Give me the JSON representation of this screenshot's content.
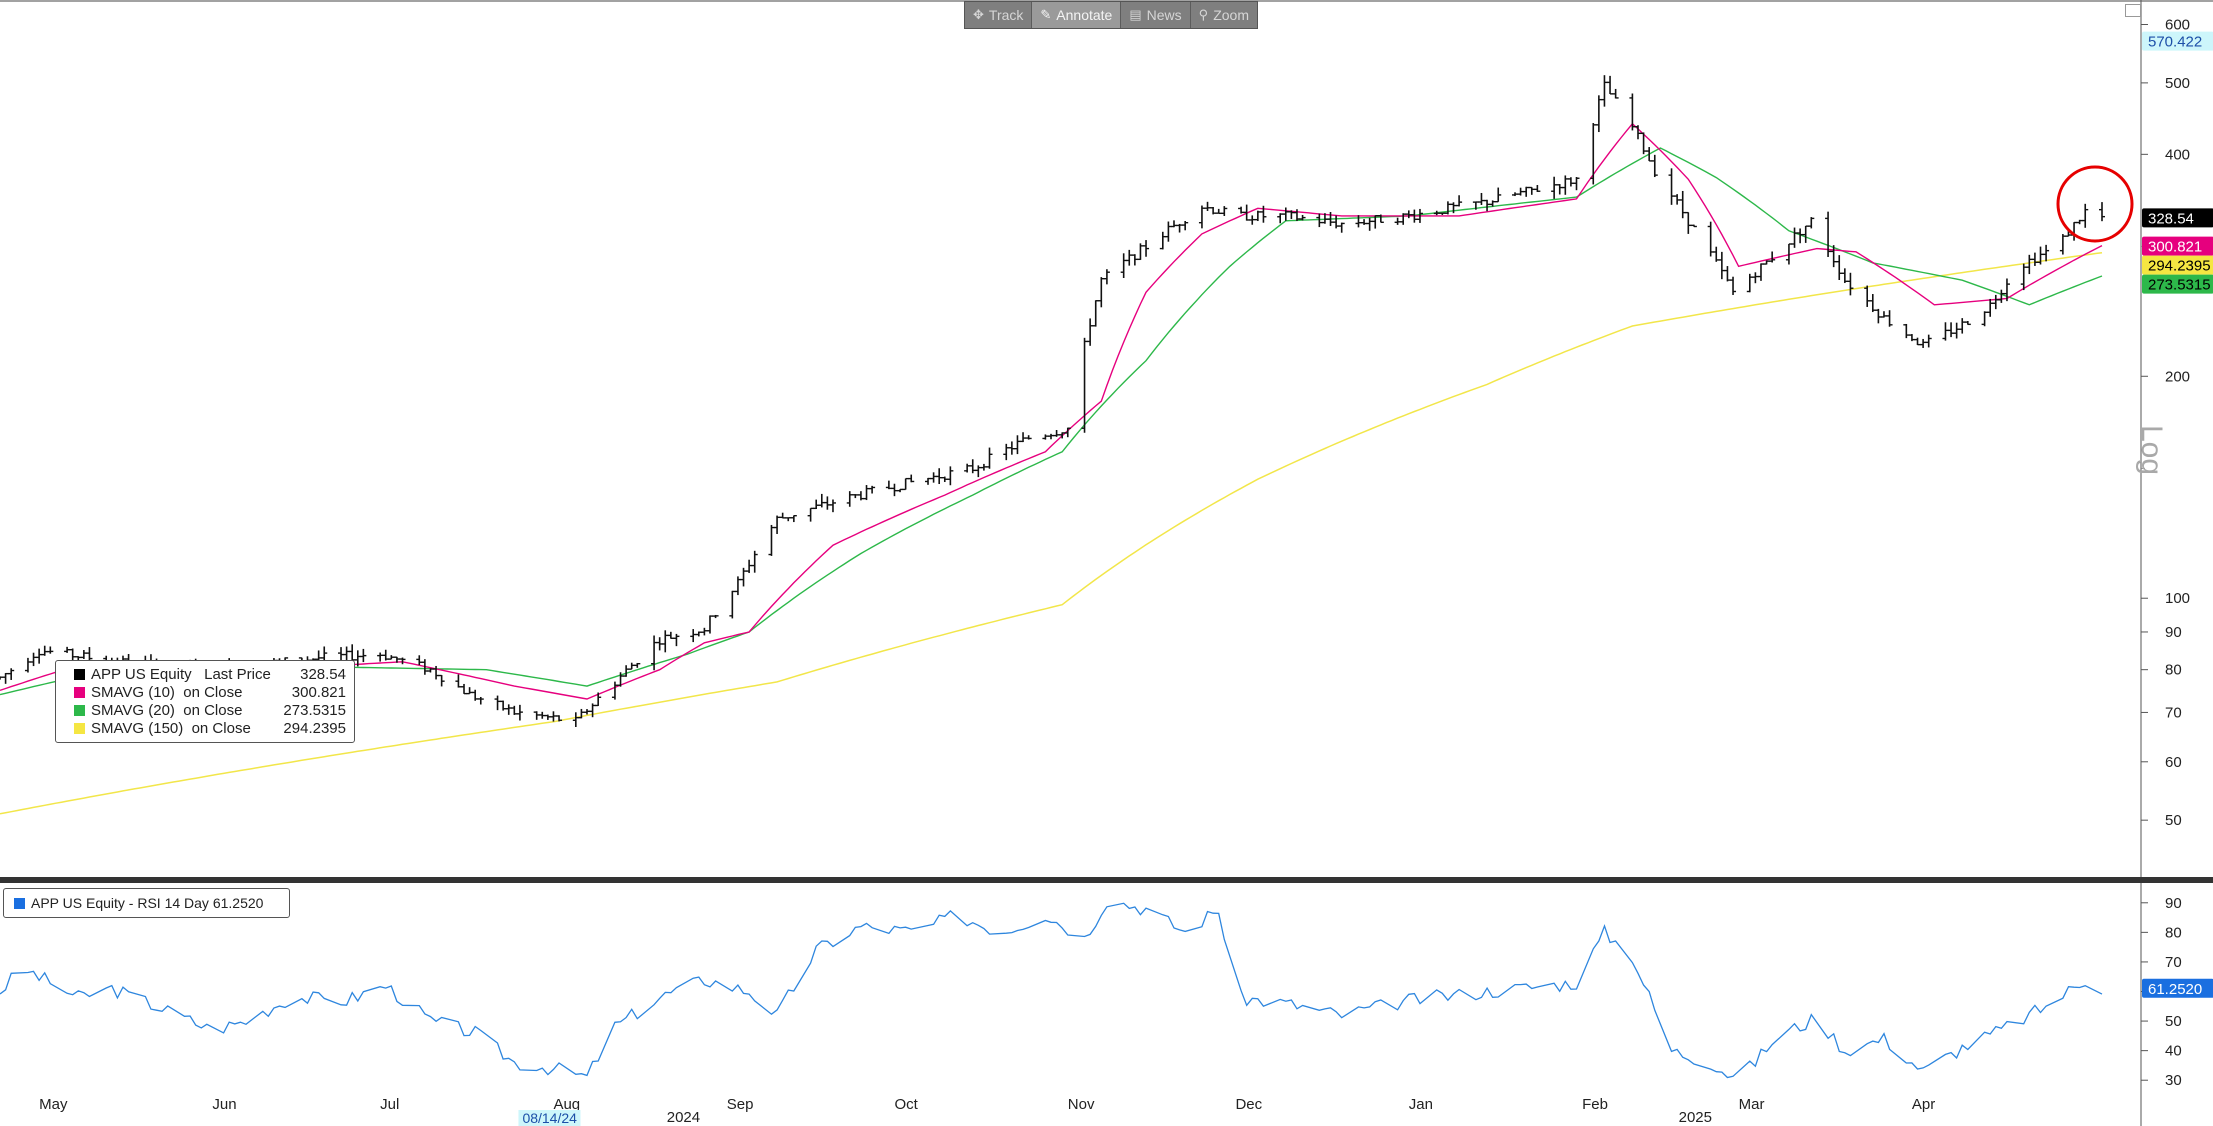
{
  "toolbar": {
    "items": [
      {
        "label": "Track",
        "icon": "crosshair-icon"
      },
      {
        "label": "Annotate",
        "icon": "pencil-icon"
      },
      {
        "label": "News",
        "icon": "news-icon"
      },
      {
        "label": "Zoom",
        "icon": "magnifier-icon"
      }
    ]
  },
  "legend": {
    "rows": [
      {
        "label": "APP US Equity   Last Price",
        "value": "328.54",
        "color": "#000000"
      },
      {
        "label": "SMAVG (10)  on Close",
        "value": "300.821",
        "color": "#e6007e"
      },
      {
        "label": "SMAVG (20)  on Close",
        "value": "273.5315",
        "color": "#2db84a"
      },
      {
        "label": "SMAVG (150)  on Close",
        "value": "294.2395",
        "color": "#f5e642"
      }
    ]
  },
  "rsi_legend": {
    "label": "APP US Equity - RSI 14 Day 61.2520",
    "color": "#1a6fe0"
  },
  "axis_word": "Log",
  "chart_data": [
    {
      "type": "ohlc",
      "series_name": "APP US Equity",
      "y_scale": "log",
      "yticks": [
        50,
        60,
        70,
        80,
        90,
        100,
        200,
        400,
        500,
        600
      ],
      "ylim": [
        42,
        620
      ],
      "x_months": [
        {
          "label": "May",
          "date": "2024-05-01"
        },
        {
          "label": "Jun",
          "date": "2024-06-01"
        },
        {
          "label": "Jul",
          "date": "2024-07-01"
        },
        {
          "label": "Aug",
          "date": "2024-08-01"
        },
        {
          "label": "Sep",
          "date": "2024-09-01"
        },
        {
          "label": "Oct",
          "date": "2024-10-01"
        },
        {
          "label": "Nov",
          "date": "2024-11-01"
        },
        {
          "label": "Dec",
          "date": "2024-12-01"
        },
        {
          "label": "Jan",
          "date": "2025-01-01"
        },
        {
          "label": "Feb",
          "date": "2025-02-01"
        },
        {
          "label": "Mar",
          "date": "2025-03-01"
        },
        {
          "label": "Apr",
          "date": "2025-04-01"
        }
      ],
      "year_labels": [
        {
          "label": "2024",
          "date": "2024-09-01"
        },
        {
          "label": "2025",
          "date": "2025-03-01"
        }
      ],
      "date_marker": {
        "label": "08/14/24",
        "date": "2024-08-01"
      },
      "price_key_points": [
        [
          "2024-04-24",
          78
        ],
        [
          "2024-05-01",
          85
        ],
        [
          "2024-05-15",
          82
        ],
        [
          "2024-06-01",
          80
        ],
        [
          "2024-06-20",
          83
        ],
        [
          "2024-07-01",
          84
        ],
        [
          "2024-07-10",
          80
        ],
        [
          "2024-07-17",
          74
        ],
        [
          "2024-07-25",
          70
        ],
        [
          "2024-08-05",
          68
        ],
        [
          "2024-08-12",
          77
        ],
        [
          "2024-08-20",
          88
        ],
        [
          "2024-08-28",
          91
        ],
        [
          "2024-09-03",
          105
        ],
        [
          "2024-09-10",
          128
        ],
        [
          "2024-09-20",
          135
        ],
        [
          "2024-10-01",
          142
        ],
        [
          "2024-10-15",
          150
        ],
        [
          "2024-10-25",
          165
        ],
        [
          "2024-11-01",
          170
        ],
        [
          "2024-11-07",
          270
        ],
        [
          "2024-11-15",
          300
        ],
        [
          "2024-11-25",
          340
        ],
        [
          "2024-12-01",
          330
        ],
        [
          "2024-12-10",
          330
        ],
        [
          "2024-12-20",
          322
        ],
        [
          "2025-01-01",
          330
        ],
        [
          "2025-01-15",
          345
        ],
        [
          "2025-01-31",
          370
        ],
        [
          "2025-02-05",
          495
        ],
        [
          "2025-02-10",
          435
        ],
        [
          "2025-02-14",
          380
        ],
        [
          "2025-02-20",
          325
        ],
        [
          "2025-02-28",
          260
        ],
        [
          "2025-03-07",
          290
        ],
        [
          "2025-03-14",
          325
        ],
        [
          "2025-03-20",
          270
        ],
        [
          "2025-03-27",
          240
        ],
        [
          "2025-04-03",
          220
        ],
        [
          "2025-04-10",
          235
        ],
        [
          "2025-04-15",
          250
        ],
        [
          "2025-04-20",
          282
        ],
        [
          "2025-04-27",
          300
        ],
        [
          "2025-05-02",
          335
        ],
        [
          "2025-05-05",
          328.54
        ]
      ],
      "price_labels": [
        {
          "value": 570.422,
          "text": "570.422",
          "bg": "#cdf6fb",
          "fg": "#1c4fa8"
        },
        {
          "value": 328.54,
          "text": "328.54",
          "bg": "#000000",
          "fg": "#ffffff"
        },
        {
          "value": 300.821,
          "text": "300.821",
          "bg": "#e6007e",
          "fg": "#ffffff"
        },
        {
          "value": 294.2395,
          "text": "294.2395",
          "bg": "#f5e642",
          "fg": "#000000"
        },
        {
          "value": 273.5315,
          "text": "273.5315",
          "bg": "#2db84a",
          "fg": "#000000"
        }
      ],
      "sma10_key_points": [
        [
          "2024-04-24",
          75
        ],
        [
          "2024-05-10",
          82
        ],
        [
          "2024-06-10",
          80
        ],
        [
          "2024-07-05",
          82
        ],
        [
          "2024-07-25",
          76
        ],
        [
          "2024-08-07",
          73
        ],
        [
          "2024-08-20",
          80
        ],
        [
          "2024-08-28",
          87
        ],
        [
          "2024-09-05",
          90
        ],
        [
          "2024-09-20",
          118
        ],
        [
          "2024-10-10",
          138
        ],
        [
          "2024-10-28",
          158
        ],
        [
          "2024-11-07",
          185
        ],
        [
          "2024-11-15",
          260
        ],
        [
          "2024-11-25",
          312
        ],
        [
          "2024-12-05",
          338
        ],
        [
          "2024-12-20",
          330
        ],
        [
          "2025-01-10",
          330
        ],
        [
          "2025-01-31",
          348
        ],
        [
          "2025-02-10",
          440
        ],
        [
          "2025-02-20",
          370
        ],
        [
          "2025-03-01",
          282
        ],
        [
          "2025-03-15",
          298
        ],
        [
          "2025-03-22",
          295
        ],
        [
          "2025-04-05",
          250
        ],
        [
          "2025-04-18",
          255
        ],
        [
          "2025-05-05",
          300.821
        ]
      ],
      "sma20_key_points": [
        [
          "2024-04-24",
          74
        ],
        [
          "2024-05-10",
          79
        ],
        [
          "2024-06-10",
          81
        ],
        [
          "2024-07-20",
          80
        ],
        [
          "2024-08-07",
          76
        ],
        [
          "2024-08-25",
          84
        ],
        [
          "2024-09-05",
          90
        ],
        [
          "2024-09-25",
          115
        ],
        [
          "2024-10-15",
          138
        ],
        [
          "2024-10-31",
          158
        ],
        [
          "2024-11-15",
          210
        ],
        [
          "2024-11-30",
          282
        ],
        [
          "2024-12-10",
          325
        ],
        [
          "2025-01-01",
          330
        ],
        [
          "2025-01-31",
          350
        ],
        [
          "2025-02-15",
          408
        ],
        [
          "2025-02-25",
          372
        ],
        [
          "2025-03-10",
          315
        ],
        [
          "2025-03-25",
          285
        ],
        [
          "2025-04-10",
          270
        ],
        [
          "2025-04-22",
          250
        ],
        [
          "2025-05-05",
          273.5315
        ]
      ],
      "sma150_key_points": [
        [
          "2024-04-24",
          51
        ],
        [
          "2024-08-01",
          68
        ],
        [
          "2024-09-10",
          77
        ],
        [
          "2024-10-31",
          98
        ],
        [
          "2024-12-05",
          145
        ],
        [
          "2025-01-15",
          195
        ],
        [
          "2025-02-10",
          234
        ],
        [
          "2025-03-15",
          258
        ],
        [
          "2025-05-05",
          294.2395
        ]
      ]
    },
    {
      "type": "line",
      "series_name": "RSI 14 Day",
      "yticks": [
        30,
        40,
        50,
        60,
        70,
        80,
        90
      ],
      "ylim": [
        25,
        95
      ],
      "last_label": {
        "value": 61.252,
        "text": "61.2520"
      },
      "rsi_key_points": [
        [
          "2024-04-24",
          60
        ],
        [
          "2024-04-28",
          68
        ],
        [
          "2024-05-03",
          63
        ],
        [
          "2024-05-08",
          58
        ],
        [
          "2024-05-14",
          61
        ],
        [
          "2024-05-22",
          55
        ],
        [
          "2024-06-01",
          47
        ],
        [
          "2024-06-07",
          50
        ],
        [
          "2024-06-15",
          58
        ],
        [
          "2024-06-25",
          57
        ],
        [
          "2024-07-02",
          62
        ],
        [
          "2024-07-10",
          50
        ],
        [
          "2024-07-18",
          46
        ],
        [
          "2024-07-25",
          36
        ],
        [
          "2024-08-01",
          34
        ],
        [
          "2024-08-07",
          31
        ],
        [
          "2024-08-12",
          48
        ],
        [
          "2024-08-20",
          58
        ],
        [
          "2024-08-28",
          64
        ],
        [
          "2024-09-05",
          60
        ],
        [
          "2024-09-10",
          52
        ],
        [
          "2024-09-17",
          74
        ],
        [
          "2024-09-25",
          82
        ],
        [
          "2024-10-05",
          80
        ],
        [
          "2024-10-12",
          86
        ],
        [
          "2024-10-20",
          80
        ],
        [
          "2024-10-28",
          86
        ],
        [
          "2024-11-04",
          78
        ],
        [
          "2024-11-08",
          91
        ],
        [
          "2024-11-15",
          88
        ],
        [
          "2024-11-22",
          80
        ],
        [
          "2024-11-28",
          88
        ],
        [
          "2024-12-01",
          58
        ],
        [
          "2024-12-10",
          56
        ],
        [
          "2024-12-20",
          52
        ],
        [
          "2025-01-01",
          57
        ],
        [
          "2025-01-15",
          60
        ],
        [
          "2025-01-31",
          63
        ],
        [
          "2025-02-05",
          80
        ],
        [
          "2025-02-10",
          72
        ],
        [
          "2025-02-17",
          40
        ],
        [
          "2025-02-24",
          36
        ],
        [
          "2025-03-01",
          30
        ],
        [
          "2025-03-08",
          45
        ],
        [
          "2025-03-15",
          51
        ],
        [
          "2025-03-20",
          40
        ],
        [
          "2025-03-27",
          44
        ],
        [
          "2025-04-03",
          33
        ],
        [
          "2025-04-10",
          41
        ],
        [
          "2025-04-17",
          47
        ],
        [
          "2025-04-25",
          55
        ],
        [
          "2025-05-02",
          64
        ],
        [
          "2025-05-05",
          61.252
        ]
      ]
    }
  ]
}
